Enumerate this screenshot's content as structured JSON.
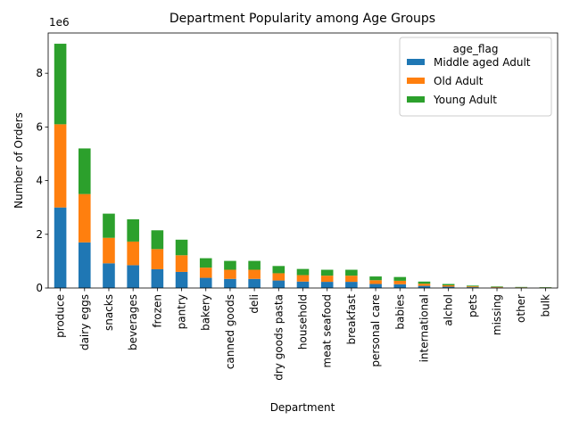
{
  "chart_data": {
    "type": "bar",
    "stacked": true,
    "title": "Department Popularity among Age Groups",
    "xlabel": "Department",
    "ylabel": "Number of Orders",
    "y_offset_label": "1e6",
    "ylim": [
      0,
      9.5
    ],
    "yticks": [
      "0",
      "2",
      "4",
      "6",
      "8"
    ],
    "legend_title": "age_flag",
    "legend_position": "top-right",
    "grid": false,
    "categories": [
      "produce",
      "dairy eggs",
      "snacks",
      "beverages",
      "frozen",
      "pantry",
      "bakery",
      "canned goods",
      "deli",
      "dry goods pasta",
      "household",
      "meat seafood",
      "breakfast",
      "personal care",
      "babies",
      "international",
      "alchol",
      "pets",
      "missing",
      "other",
      "bulk"
    ],
    "series": [
      {
        "name": "Middle aged Adult",
        "color": "#1f77b4",
        "values": [
          3.0,
          1.7,
          0.92,
          0.85,
          0.7,
          0.6,
          0.38,
          0.34,
          0.34,
          0.28,
          0.24,
          0.23,
          0.23,
          0.15,
          0.14,
          0.08,
          0.05,
          0.03,
          0.02,
          0.013,
          0.011
        ]
      },
      {
        "name": "Old Adult",
        "color": "#ff7f0e",
        "values": [
          3.1,
          1.8,
          0.95,
          0.88,
          0.75,
          0.62,
          0.38,
          0.34,
          0.34,
          0.27,
          0.24,
          0.23,
          0.23,
          0.14,
          0.13,
          0.08,
          0.05,
          0.03,
          0.02,
          0.013,
          0.011
        ]
      },
      {
        "name": "Young Adult",
        "color": "#2ca02c",
        "values": [
          3.0,
          1.7,
          0.9,
          0.83,
          0.7,
          0.58,
          0.35,
          0.33,
          0.33,
          0.27,
          0.23,
          0.22,
          0.22,
          0.14,
          0.14,
          0.08,
          0.05,
          0.03,
          0.02,
          0.013,
          0.011
        ]
      }
    ]
  }
}
